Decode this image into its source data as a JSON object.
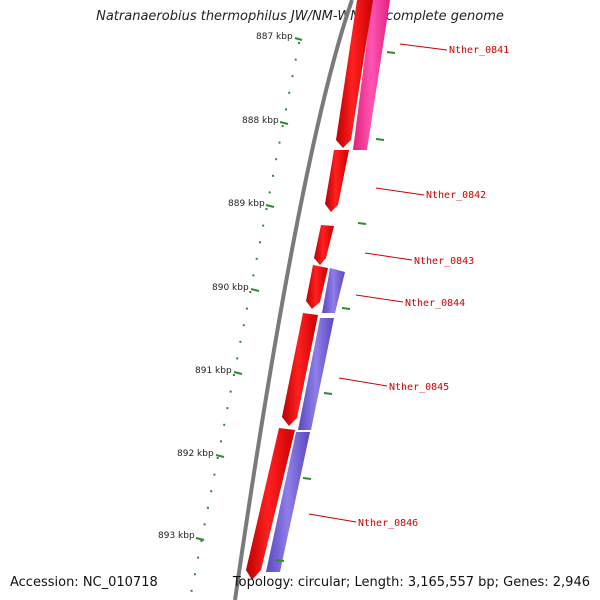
{
  "title": "Natranaerobius thermophilus JW/NM-WN-LF, complete genome",
  "footer": {
    "accession": "Accession: NC_010718",
    "summary": "Topology: circular; Length: 3,165,557 bp; Genes: 2,946"
  },
  "colors": {
    "backbone": "#7a7a7a",
    "forward_gene": "#ee0000",
    "reverse_gene_pink": "#ff3399",
    "reverse_gene_purple": "#7b68d8",
    "ticks": "#2e8b2e",
    "label_line": "#cc0000"
  },
  "scale_ticks": [
    "887 kbp",
    "888 kbp",
    "889 kbp",
    "890 kbp",
    "891 kbp",
    "892 kbp",
    "893 kbp"
  ],
  "genes": [
    "Nther_0841",
    "Nther_0842",
    "Nther_0843",
    "Nther_0844",
    "Nther_0845",
    "Nther_0846"
  ]
}
